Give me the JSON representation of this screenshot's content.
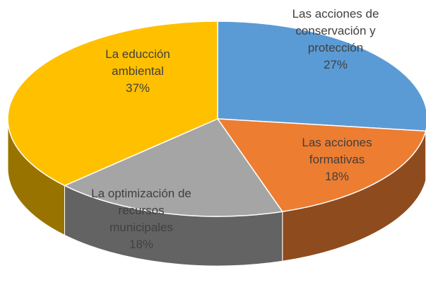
{
  "chart_data": {
    "type": "pie",
    "style": "3d",
    "categories": [
      "Las acciones de conservación y protección",
      "Las acciones formativas",
      "La optimización de recursos municipales",
      "La educción ambiental"
    ],
    "values": [
      27,
      18,
      18,
      37
    ],
    "value_labels": [
      "27%",
      "18%",
      "18%",
      "37%"
    ],
    "colors": [
      "#5b9bd5",
      "#ed7d31",
      "#a5a5a5",
      "#ffc000"
    ]
  }
}
